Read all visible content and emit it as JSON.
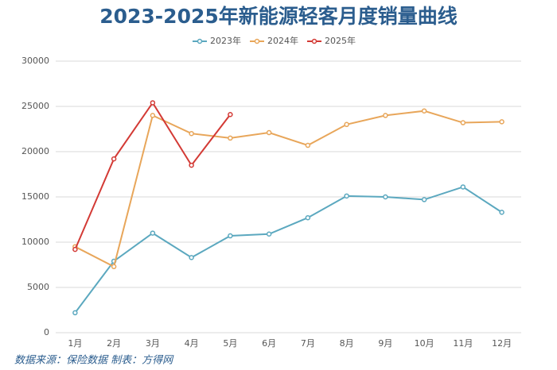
{
  "chart_data": {
    "type": "line",
    "title": "2023-2025年新能源轻客月度销量曲线",
    "categories": [
      "1月",
      "2月",
      "3月",
      "4月",
      "5月",
      "6月",
      "7月",
      "8月",
      "9月",
      "10月",
      "11月",
      "12月"
    ],
    "series": [
      {
        "name": "2023年",
        "color": "#5ba8bf",
        "values": [
          2200,
          7900,
          11000,
          8300,
          10700,
          10900,
          12700,
          15100,
          15000,
          14700,
          16100,
          13300
        ]
      },
      {
        "name": "2024年",
        "color": "#e8a65a",
        "values": [
          9500,
          7300,
          24000,
          22000,
          21500,
          22100,
          20700,
          23000,
          24000,
          24500,
          23200,
          23300
        ]
      },
      {
        "name": "2025年",
        "color": "#d33a35",
        "values": [
          9200,
          19200,
          25400,
          18500,
          24100,
          null,
          null,
          null,
          null,
          null,
          null,
          null
        ]
      }
    ],
    "ylim": [
      0,
      30000
    ],
    "yticks": [
      0,
      5000,
      10000,
      15000,
      20000,
      25000,
      30000
    ],
    "grid": true,
    "legend": "top"
  },
  "source": "数据来源：保险数据 制表：方得网"
}
